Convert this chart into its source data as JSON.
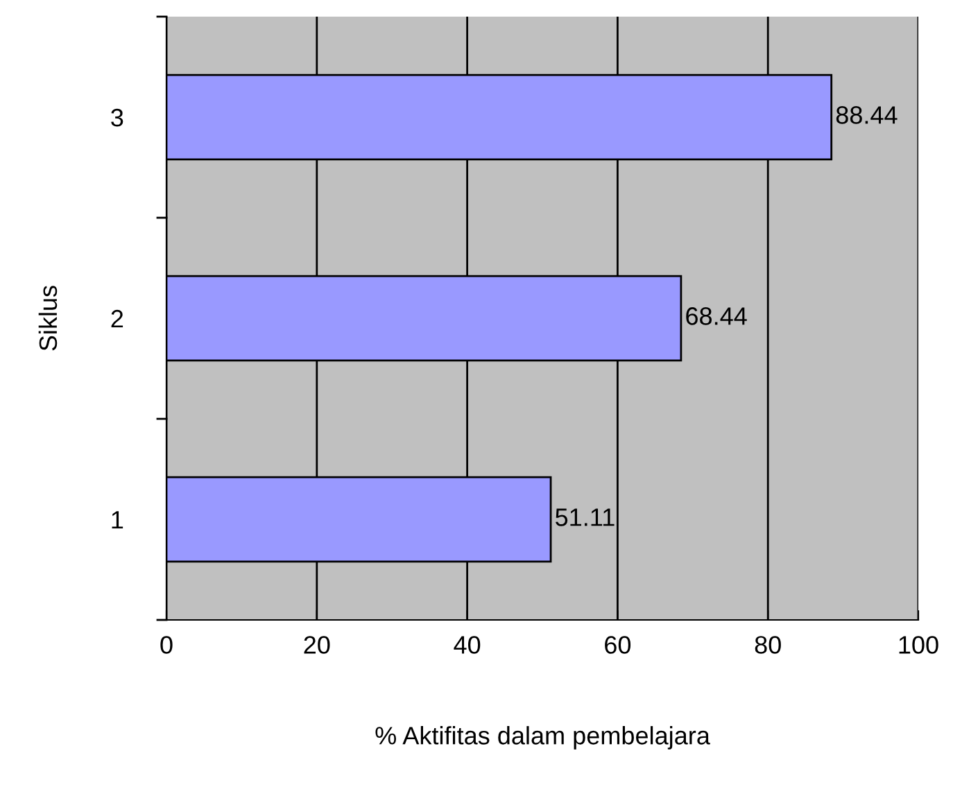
{
  "chart_data": {
    "type": "bar",
    "orientation": "horizontal",
    "categories": [
      "3",
      "2",
      "1"
    ],
    "values": [
      88.44,
      68.44,
      51.11
    ],
    "color": "#9999ff",
    "xlim": [
      0,
      100
    ],
    "xticks": [
      0,
      20,
      40,
      60,
      80,
      100
    ],
    "xlabel": "% Aktifitas dalam pembelajara",
    "ylabel": "Siklus",
    "grid": "x",
    "data_labels": true
  }
}
